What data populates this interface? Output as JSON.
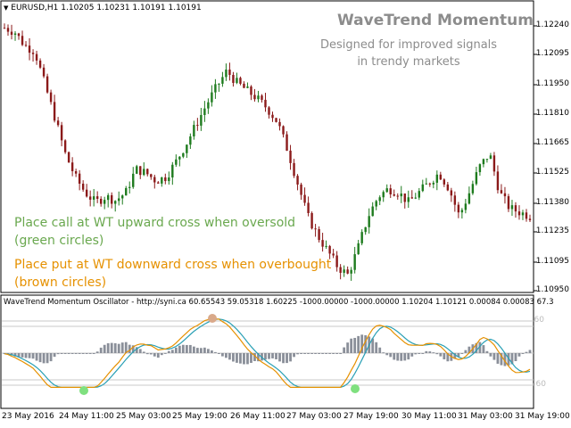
{
  "main_header": {
    "symbol": "EURUSD,H1",
    "ohlc": "1.10205 1.10231 1.10191 1.10191"
  },
  "overlay": {
    "title": "WaveTrend Momentum",
    "subtitle_line1": "Designed for improved signals",
    "subtitle_line2": "in trendy markets",
    "note_call_line1": "Place call at WT upward cross when oversold",
    "note_call_line2": "(green circles)",
    "note_put_line1": "Place put at WT downward cross when overbought",
    "note_put_line2": "(brown circles)"
  },
  "oscillator_header": "WaveTrend Momentum Oscillator - http://syni.ca 60.65543 59.05318 1.60225 -1000.00000 -1000.00000 1.10204 1.10121 0.00084 0.00083 67.3",
  "price_axis": [
    "1.12240",
    "1.12095",
    "1.11950",
    "1.11810",
    "1.11665",
    "1.11525",
    "1.11380",
    "1.11235",
    "1.11095",
    "1.10950"
  ],
  "oscillator_axis": [
    "60",
    "-60"
  ],
  "time_axis": [
    "23 May 2016",
    "24 May 11:00",
    "25 May 03:00",
    "25 May 19:00",
    "26 May 11:00",
    "27 May 03:00",
    "27 May 19:00",
    "30 May 11:00",
    "31 May 03:00",
    "31 May 19:00"
  ],
  "colors": {
    "bull": "#1e7b1e",
    "bear": "#8b1a1a",
    "wt1": "#e69100",
    "wt2": "#2aa0b5",
    "hist": "#8a8f99",
    "buy_circle": "#7fe07f",
    "sell_circle": "#d9a98a"
  },
  "chart_data": {
    "type": "candlestick",
    "price_ylim": [
      1.109,
      1.123
    ],
    "close_path": [
      1.1224,
      1.1222,
      1.1215,
      1.1212,
      1.1195,
      1.1178,
      1.116,
      1.1148,
      1.114,
      1.1135,
      1.1138,
      1.1136,
      1.114,
      1.1152,
      1.115,
      1.1146,
      1.1148,
      1.1156,
      1.1165,
      1.1175,
      1.1185,
      1.1194,
      1.1202,
      1.1196,
      1.1192,
      1.1188,
      1.1183,
      1.1176,
      1.1162,
      1.1145,
      1.1128,
      1.1118,
      1.111,
      1.1102,
      1.1098,
      1.1112,
      1.1128,
      1.1138,
      1.1142,
      1.114,
      1.1135,
      1.114,
      1.1145,
      1.115,
      1.1142,
      1.1128,
      1.114,
      1.1153,
      1.116,
      1.114,
      1.1132,
      1.113,
      1.1128
    ]
  }
}
